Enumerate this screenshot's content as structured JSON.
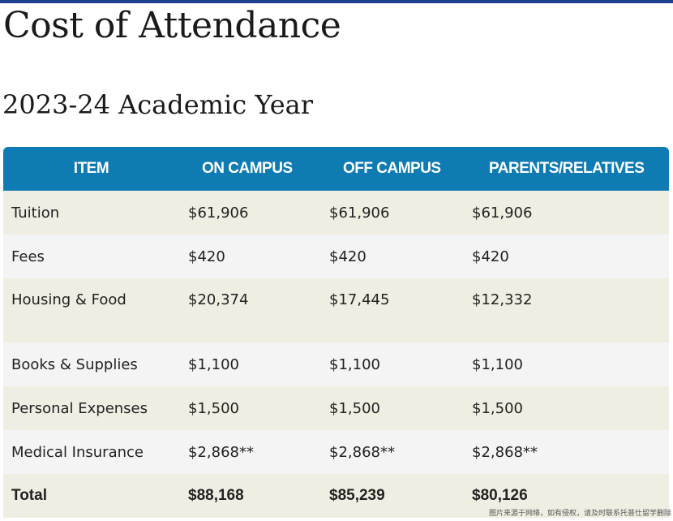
{
  "page": {
    "title": "Cost of Attendance",
    "subtitle": "2023-24 Academic Year"
  },
  "colors": {
    "header_bg": "#0e7bb3",
    "row_beige": "#f0ede2",
    "row_grey": "#f4f4f4",
    "top_bar": "#1f3f8f"
  },
  "table": {
    "headers": [
      "ITEM",
      "ON CAMPUS",
      "OFF CAMPUS",
      "PARENTS/RELATIVES"
    ],
    "rows": [
      [
        "Tuition",
        "$61,906",
        "$61,906",
        "$61,906"
      ],
      [
        "Fees",
        "$420",
        "$420",
        "$420"
      ],
      [
        "Housing & Food",
        "$20,374",
        "$17,445",
        "$12,332"
      ],
      [
        "Books & Supplies",
        "$1,100",
        "$1,100",
        "$1,100"
      ],
      [
        "Personal Expenses",
        "$1,500",
        "$1,500",
        "$1,500"
      ],
      [
        "Medical Insurance",
        "$2,868**",
        "$2,868**",
        "$2,868**"
      ],
      [
        "Total",
        "$88,168",
        "$85,239",
        "$80,126"
      ]
    ]
  },
  "watermark": "图片来源于网络，如有侵权，请及时联系托普仕留学删除"
}
